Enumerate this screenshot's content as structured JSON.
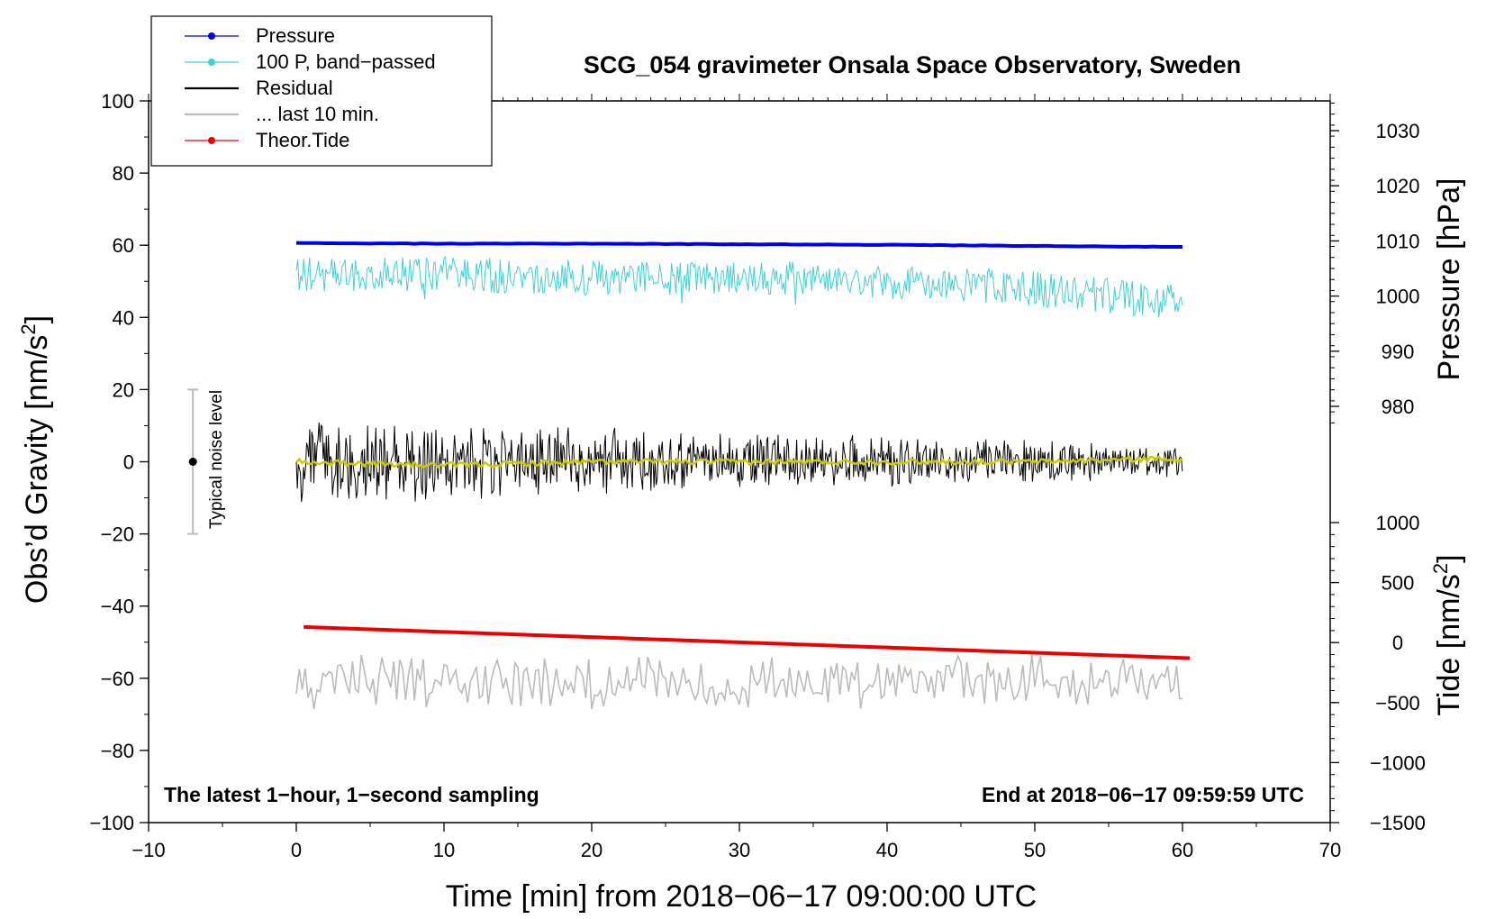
{
  "chart_data": {
    "type": "line",
    "title": "SCG_054 gravimeter Onsala Space Observatory, Sweden",
    "xlabel": "Time [min] from 2018−06−17 09:00:00 UTC",
    "ylabel_left": "Obs’d Gravity [nm/s",
    "ylabel_left_sup": "2",
    "ylabel_left_end": "]",
    "ylabel_right_top": "Pressure [hPa]",
    "ylabel_right_bottom": "Tide [nm/s",
    "ylabel_right_bottom_sup": "2",
    "ylabel_right_bottom_end": "]",
    "xlim": [
      -10,
      70
    ],
    "ylim_left": [
      -100,
      100
    ],
    "ylim_pressure": [
      1030,
      980
    ],
    "ylim_tide": [
      1000,
      -1500
    ],
    "x_ticks": [
      "−10",
      "0",
      "10",
      "20",
      "30",
      "40",
      "50",
      "60",
      "70"
    ],
    "y_left_ticks": [
      "100",
      "80",
      "60",
      "40",
      "20",
      "0",
      "−20",
      "−40",
      "−60",
      "−80",
      "−100"
    ],
    "pressure_ticks": [
      "1030",
      "1020",
      "1010",
      "1000",
      "990",
      "980"
    ],
    "tide_ticks": [
      "1000",
      "500",
      "0",
      "−500",
      "−1000",
      "−1500"
    ],
    "legend_position": "top-left",
    "note_left": "The latest 1−hour, 1−second sampling",
    "note_right": "End at 2018−06−17 09:59:59 UTC",
    "noise_bar": {
      "label": "Typical noise level",
      "x": -7,
      "center": 0,
      "low": -20,
      "high": 20
    },
    "series": [
      {
        "name": "Pressure",
        "color": "#0000ee",
        "style": "line-dot",
        "axis": "pressure",
        "x": [
          0,
          10,
          20,
          30,
          40,
          50,
          60
        ],
        "values": [
          1009.6,
          1009.5,
          1009.5,
          1009.4,
          1009.3,
          1009.1,
          1008.9
        ]
      },
      {
        "name": "100 P, band−passed",
        "color": "#40d0d0",
        "style": "line-dot",
        "axis": "left",
        "x": [
          0,
          10,
          20,
          30,
          40,
          50,
          60
        ],
        "values": [
          52,
          52,
          51,
          51,
          50,
          48,
          44
        ]
      },
      {
        "name": "Residual",
        "color": "#000000",
        "style": "line",
        "axis": "left",
        "x": [
          0,
          10,
          20,
          30,
          40,
          50,
          60
        ],
        "values": [
          0,
          0,
          0,
          0,
          0,
          0,
          0
        ]
      },
      {
        "name": "... last 10 min.",
        "color": "#bbbbbb",
        "style": "line",
        "axis": "left",
        "x": [
          0,
          60
        ],
        "values": [
          -61,
          -61
        ]
      },
      {
        "name": "Theor.Tide",
        "color": "#ee0000",
        "style": "line-dot",
        "axis": "tide",
        "x": [
          0.5,
          60.5
        ],
        "values": [
          130,
          -130
        ]
      },
      {
        "color": "#cccc00",
        "style": "line",
        "axis": "left",
        "x": [
          0,
          10,
          20,
          30,
          40,
          50,
          60
        ],
        "values": [
          0,
          -1,
          0,
          0,
          0,
          0,
          1
        ]
      }
    ]
  }
}
